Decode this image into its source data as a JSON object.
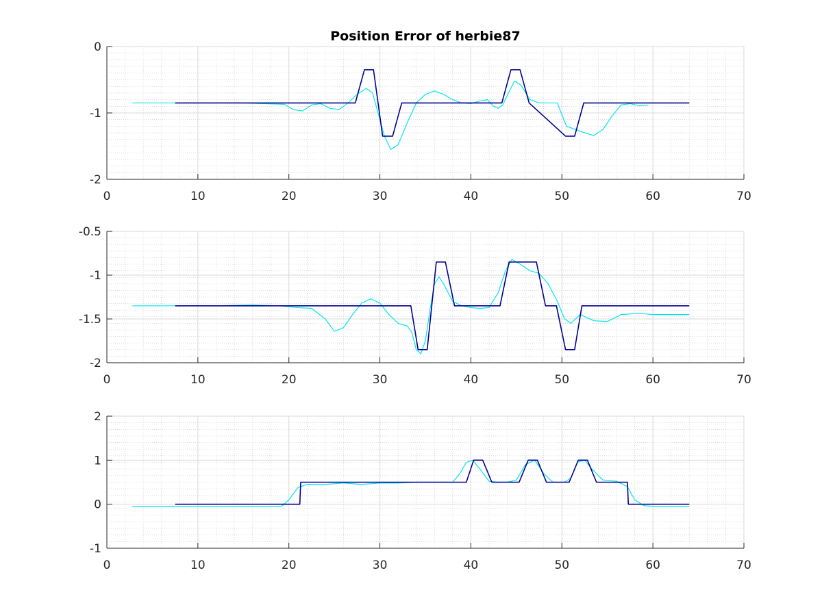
{
  "figure": {
    "title": "Position Error of herbie87",
    "background": "#ffffff"
  },
  "colors": {
    "reference": "#00008B",
    "actual": "#00E5EE",
    "grid_major": "#d9d9d9",
    "grid_minor": "#c8c8c8",
    "axis": "#262626"
  },
  "chart_data": [
    {
      "type": "line",
      "title": "Position Error of herbie87",
      "xlabel": "",
      "ylabel": "",
      "xlim": [
        0,
        70
      ],
      "ylim": [
        -2,
        0
      ],
      "xticks": [
        0,
        10,
        20,
        30,
        40,
        50,
        60,
        70
      ],
      "yticks": [
        -2,
        -1,
        0
      ],
      "xtick_labels": [
        "0",
        "10",
        "20",
        "30",
        "40",
        "50",
        "60",
        "70"
      ],
      "ytick_labels": [
        "-2",
        "-1",
        "0"
      ],
      "grid": "major and minor",
      "series": [
        {
          "color": "#00E5EE",
          "x": [
            2.8,
            7.5,
            10,
            15,
            19.5,
            20.5,
            21.5,
            22.5,
            23.5,
            24.5,
            25.5,
            26.5,
            27.5,
            28.5,
            29.2,
            29.8,
            30.5,
            31.2,
            32,
            33,
            34,
            35,
            36,
            37,
            38,
            39,
            40,
            41,
            41.8,
            42.5,
            43,
            43.5,
            44.2,
            44.8,
            45.5,
            46.5,
            47.5,
            48.5,
            49.5,
            50.5,
            51.5,
            52.5,
            53.5,
            54.5,
            55.5,
            56.5,
            57.5,
            58.5,
            59.5
          ],
          "y": [
            -0.85,
            -0.85,
            -0.85,
            -0.85,
            -0.87,
            -0.95,
            -0.97,
            -0.88,
            -0.86,
            -0.93,
            -0.95,
            -0.85,
            -0.72,
            -0.63,
            -0.7,
            -1.0,
            -1.35,
            -1.55,
            -1.48,
            -1.15,
            -0.85,
            -0.72,
            -0.67,
            -0.72,
            -0.8,
            -0.85,
            -0.86,
            -0.82,
            -0.8,
            -0.9,
            -0.93,
            -0.88,
            -0.68,
            -0.52,
            -0.58,
            -0.8,
            -0.85,
            -0.85,
            -0.85,
            -1.2,
            -1.25,
            -1.3,
            -1.34,
            -1.25,
            -1.05,
            -0.88,
            -0.86,
            -0.89,
            -0.88
          ]
        },
        {
          "color": "#00008B",
          "x": [
            7.5,
            27.3,
            28.3,
            29.3,
            30.3,
            31.4,
            32.4,
            43.4,
            44.4,
            45.4,
            46.4,
            50.4,
            51.4,
            52.4,
            64
          ],
          "y": [
            -0.85,
            -0.85,
            -0.35,
            -0.35,
            -1.35,
            -1.35,
            -0.85,
            -0.85,
            -0.35,
            -0.35,
            -0.85,
            -1.35,
            -1.35,
            -0.85,
            -0.85
          ]
        }
      ]
    },
    {
      "type": "line",
      "title": "",
      "xlabel": "",
      "ylabel": "",
      "xlim": [
        0,
        70
      ],
      "ylim": [
        -2,
        -0.5
      ],
      "xticks": [
        0,
        10,
        20,
        30,
        40,
        50,
        60,
        70
      ],
      "yticks": [
        -2,
        -1.5,
        -1,
        -0.5
      ],
      "xtick_labels": [
        "0",
        "10",
        "20",
        "30",
        "40",
        "50",
        "60",
        "70"
      ],
      "ytick_labels": [
        "-2",
        "-1.5",
        "-1",
        "-0.5"
      ],
      "grid": "major and minor",
      "series": [
        {
          "color": "#00E5EE",
          "x": [
            2.8,
            7.5,
            12,
            16,
            19,
            21,
            22.5,
            24,
            25,
            26,
            27,
            28,
            29,
            30,
            31,
            32,
            33,
            33.5,
            34,
            34.5,
            35,
            35.5,
            36,
            36.5,
            37,
            38,
            39,
            40,
            41,
            42,
            43,
            43.8,
            44.5,
            45.5,
            46.5,
            47.5,
            48.5,
            49.5,
            50.3,
            51,
            52,
            53.5,
            55,
            56.5,
            58,
            59,
            60,
            64
          ],
          "y": [
            -1.35,
            -1.35,
            -1.35,
            -1.34,
            -1.35,
            -1.37,
            -1.38,
            -1.5,
            -1.64,
            -1.6,
            -1.45,
            -1.32,
            -1.27,
            -1.32,
            -1.45,
            -1.55,
            -1.58,
            -1.65,
            -1.85,
            -1.9,
            -1.75,
            -1.4,
            -1.1,
            -1.02,
            -1.1,
            -1.3,
            -1.35,
            -1.37,
            -1.38,
            -1.37,
            -1.2,
            -0.95,
            -0.82,
            -0.88,
            -0.95,
            -0.98,
            -1.1,
            -1.3,
            -1.5,
            -1.55,
            -1.45,
            -1.52,
            -1.53,
            -1.45,
            -1.44,
            -1.44,
            -1.45,
            -1.45
          ]
        },
        {
          "color": "#00008B",
          "x": [
            7.5,
            33.4,
            34.2,
            35.2,
            36.2,
            37.2,
            38.2,
            43.2,
            44.2,
            47.2,
            48.2,
            49.4,
            50.4,
            51.4,
            52.2,
            64
          ],
          "y": [
            -1.35,
            -1.35,
            -1.85,
            -1.85,
            -0.85,
            -0.85,
            -1.35,
            -1.35,
            -0.85,
            -0.85,
            -1.35,
            -1.35,
            -1.85,
            -1.85,
            -1.35,
            -1.35
          ]
        }
      ]
    },
    {
      "type": "line",
      "title": "",
      "xlabel": "",
      "ylabel": "",
      "xlim": [
        0,
        70
      ],
      "ylim": [
        -1,
        2
      ],
      "xticks": [
        0,
        10,
        20,
        30,
        40,
        50,
        60,
        70
      ],
      "yticks": [
        -1,
        0,
        1,
        2
      ],
      "xtick_labels": [
        "0",
        "10",
        "20",
        "30",
        "40",
        "50",
        "60",
        "70"
      ],
      "ytick_labels": [
        "-1",
        "0",
        "1",
        "2"
      ],
      "grid": "major and minor",
      "series": [
        {
          "color": "#00E5EE",
          "x": [
            2.8,
            7.5,
            15,
            19.2,
            20,
            21,
            22,
            24,
            26,
            28,
            30,
            32,
            34,
            36,
            38,
            38.8,
            39.5,
            40.2,
            41,
            42,
            43,
            44,
            45,
            46,
            47,
            48,
            49,
            50.3,
            51,
            51.7,
            52.5,
            53.3,
            54.5,
            56,
            57.2,
            58,
            59,
            60,
            64
          ],
          "y": [
            -0.05,
            -0.05,
            -0.05,
            -0.05,
            0.1,
            0.38,
            0.45,
            0.45,
            0.48,
            0.45,
            0.48,
            0.48,
            0.5,
            0.5,
            0.5,
            0.7,
            0.95,
            1.0,
            0.8,
            0.52,
            0.5,
            0.5,
            0.55,
            0.9,
            1.0,
            0.7,
            0.5,
            0.5,
            0.6,
            0.95,
            1.0,
            0.8,
            0.55,
            0.52,
            0.4,
            0.1,
            -0.03,
            -0.05,
            -0.05
          ]
        },
        {
          "color": "#00008B",
          "x": [
            7.5,
            21.2,
            21.3,
            39.5,
            40.3,
            41.3,
            42.3,
            45.3,
            46.3,
            47.3,
            48.3,
            50.8,
            51.8,
            52.8,
            53.8,
            57.2,
            57.3,
            64
          ],
          "y": [
            0,
            0,
            0.5,
            0.5,
            1.0,
            1.0,
            0.5,
            0.5,
            1.0,
            1.0,
            0.5,
            0.5,
            1.0,
            1.0,
            0.5,
            0.5,
            0,
            0
          ]
        }
      ]
    }
  ]
}
